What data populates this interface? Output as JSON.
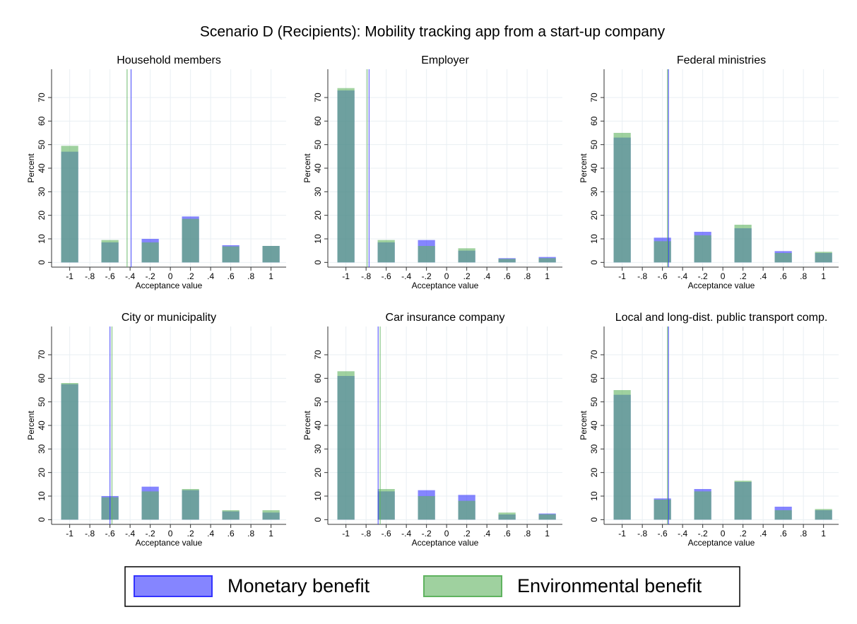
{
  "title": "Scenario D (Recipients): Mobility tracking app from a start-up company",
  "chart_data": [
    {
      "type": "bar",
      "title": "Household members",
      "x_label": "Acceptance value",
      "y_label": "Percent",
      "x": [
        -1,
        -0.6,
        -0.2,
        0.2,
        0.6,
        1
      ],
      "series": [
        {
          "name": "Monetary benefit",
          "color": "#3333ff",
          "values": [
            47,
            8.5,
            10,
            19.5,
            7.3,
            7
          ],
          "mean": -0.39
        },
        {
          "name": "Environmental benefit",
          "color": "#5fb35f",
          "values": [
            49.5,
            9.5,
            8.5,
            18.5,
            6.8,
            7
          ],
          "mean": -0.43
        }
      ],
      "xlim": [
        -1.18,
        1.15
      ],
      "ylim": [
        -2,
        82
      ],
      "xticks": [
        -1,
        {
          "value": -0.8,
          "label": "-.8"
        },
        {
          "value": -0.6,
          "label": "-.6"
        },
        {
          "value": -0.4,
          "label": "-.4"
        },
        {
          "value": -0.2,
          "label": "-.2"
        },
        0,
        {
          "value": 0.2,
          "label": ".2"
        },
        {
          "value": 0.4,
          "label": ".4"
        },
        {
          "value": 0.6,
          "label": ".6"
        },
        {
          "value": 0.8,
          "label": ".8"
        },
        1
      ],
      "yticks": [
        0,
        10,
        20,
        30,
        40,
        50,
        60,
        70
      ],
      "grid": true
    },
    {
      "type": "bar",
      "title": "Employer",
      "x_label": "Acceptance value",
      "y_label": "Percent",
      "x": [
        -1,
        -0.6,
        -0.2,
        0.2,
        0.6,
        1
      ],
      "series": [
        {
          "name": "Monetary benefit",
          "color": "#3333ff",
          "values": [
            73,
            8.5,
            9.5,
            5,
            1.8,
            2.3
          ],
          "mean": -0.77
        },
        {
          "name": "Environmental benefit",
          "color": "#5fb35f",
          "values": [
            74,
            9.5,
            7,
            6,
            1.5,
            1.8
          ],
          "mean": -0.79
        }
      ],
      "xlim": [
        -1.18,
        1.15
      ],
      "ylim": [
        -2,
        82
      ],
      "xticks": [
        -1,
        {
          "value": -0.8,
          "label": "-.8"
        },
        {
          "value": -0.6,
          "label": "-.6"
        },
        {
          "value": -0.4,
          "label": "-.4"
        },
        {
          "value": -0.2,
          "label": "-.2"
        },
        0,
        {
          "value": 0.2,
          "label": ".2"
        },
        {
          "value": 0.4,
          "label": ".4"
        },
        {
          "value": 0.6,
          "label": ".6"
        },
        {
          "value": 0.8,
          "label": ".8"
        },
        1
      ],
      "yticks": [
        0,
        10,
        20,
        30,
        40,
        50,
        60,
        70
      ],
      "grid": true
    },
    {
      "type": "bar",
      "title": "Federal ministries",
      "x_label": "Acceptance value",
      "y_label": "Percent",
      "x": [
        -1,
        -0.6,
        -0.2,
        0.2,
        0.6,
        1
      ],
      "series": [
        {
          "name": "Monetary benefit",
          "color": "#3333ff",
          "values": [
            53,
            10.5,
            13,
            14.5,
            4.8,
            4
          ],
          "mean": -0.54
        },
        {
          "name": "Environmental benefit",
          "color": "#5fb35f",
          "values": [
            55,
            9,
            11.5,
            16,
            4,
            4.5
          ],
          "mean": -0.55
        }
      ],
      "xlim": [
        -1.18,
        1.15
      ],
      "ylim": [
        -2,
        82
      ],
      "xticks": [
        -1,
        {
          "value": -0.8,
          "label": "-.8"
        },
        {
          "value": -0.6,
          "label": "-.6"
        },
        {
          "value": -0.4,
          "label": "-.4"
        },
        {
          "value": -0.2,
          "label": "-.2"
        },
        0,
        {
          "value": 0.2,
          "label": ".2"
        },
        {
          "value": 0.4,
          "label": ".4"
        },
        {
          "value": 0.6,
          "label": ".6"
        },
        {
          "value": 0.8,
          "label": ".8"
        },
        1
      ],
      "yticks": [
        0,
        10,
        20,
        30,
        40,
        50,
        60,
        70
      ],
      "grid": true
    },
    {
      "type": "bar",
      "title": "City or municipality",
      "x_label": "Acceptance value",
      "y_label": "Percent",
      "x": [
        -1,
        -0.6,
        -0.2,
        0.2,
        0.6,
        1
      ],
      "series": [
        {
          "name": "Monetary benefit",
          "color": "#3333ff",
          "values": [
            57.5,
            10,
            14,
            12.5,
            3.5,
            3
          ],
          "mean": -0.6
        },
        {
          "name": "Environmental benefit",
          "color": "#5fb35f",
          "values": [
            58,
            9.5,
            12,
            13,
            4,
            4
          ],
          "mean": -0.58
        }
      ],
      "xlim": [
        -1.18,
        1.15
      ],
      "ylim": [
        -2,
        82
      ],
      "xticks": [
        -1,
        {
          "value": -0.8,
          "label": "-.8"
        },
        {
          "value": -0.6,
          "label": "-.6"
        },
        {
          "value": -0.4,
          "label": "-.4"
        },
        {
          "value": -0.2,
          "label": "-.2"
        },
        0,
        {
          "value": 0.2,
          "label": ".2"
        },
        {
          "value": 0.4,
          "label": ".4"
        },
        {
          "value": 0.6,
          "label": ".6"
        },
        {
          "value": 0.8,
          "label": ".8"
        },
        1
      ],
      "yticks": [
        0,
        10,
        20,
        30,
        40,
        50,
        60,
        70
      ],
      "grid": true
    },
    {
      "type": "bar",
      "title": "Car insurance company",
      "x_label": "Acceptance value",
      "y_label": "Percent",
      "x": [
        -1,
        -0.6,
        -0.2,
        0.2,
        0.6,
        1
      ],
      "series": [
        {
          "name": "Monetary benefit",
          "color": "#3333ff",
          "values": [
            61,
            12,
            12.5,
            10.5,
            2.2,
            2.6
          ],
          "mean": -0.68
        },
        {
          "name": "Environmental benefit",
          "color": "#5fb35f",
          "values": [
            63,
            13,
            10,
            8,
            3,
            2.3
          ],
          "mean": -0.66
        }
      ],
      "xlim": [
        -1.18,
        1.15
      ],
      "ylim": [
        -2,
        82
      ],
      "xticks": [
        -1,
        {
          "value": -0.8,
          "label": "-.8"
        },
        {
          "value": -0.6,
          "label": "-.6"
        },
        {
          "value": -0.4,
          "label": "-.4"
        },
        {
          "value": -0.2,
          "label": "-.2"
        },
        0,
        {
          "value": 0.2,
          "label": ".2"
        },
        {
          "value": 0.4,
          "label": ".4"
        },
        {
          "value": 0.6,
          "label": ".6"
        },
        {
          "value": 0.8,
          "label": ".8"
        },
        1
      ],
      "yticks": [
        0,
        10,
        20,
        30,
        40,
        50,
        60,
        70
      ],
      "grid": true
    },
    {
      "type": "bar",
      "title": "Local and long-dist. public transport comp.",
      "x_label": "Acceptance value",
      "y_label": "Percent",
      "x": [
        -1,
        -0.6,
        -0.2,
        0.2,
        0.6,
        1
      ],
      "series": [
        {
          "name": "Monetary benefit",
          "color": "#3333ff",
          "values": [
            53,
            9,
            13,
            16,
            5.5,
            4
          ],
          "mean": -0.54
        },
        {
          "name": "Environmental benefit",
          "color": "#5fb35f",
          "values": [
            55,
            8.5,
            12,
            16.5,
            4,
            4.5
          ],
          "mean": -0.55
        }
      ],
      "xlim": [
        -1.18,
        1.15
      ],
      "ylim": [
        -2,
        82
      ],
      "xticks": [
        -1,
        {
          "value": -0.8,
          "label": "-.8"
        },
        {
          "value": -0.6,
          "label": "-.6"
        },
        {
          "value": -0.4,
          "label": "-.4"
        },
        {
          "value": -0.2,
          "label": "-.2"
        },
        0,
        {
          "value": 0.2,
          "label": ".2"
        },
        {
          "value": 0.4,
          "label": ".4"
        },
        {
          "value": 0.6,
          "label": ".6"
        },
        {
          "value": 0.8,
          "label": ".8"
        },
        1
      ],
      "yticks": [
        0,
        10,
        20,
        30,
        40,
        50,
        60,
        70
      ],
      "grid": true
    }
  ]
}
